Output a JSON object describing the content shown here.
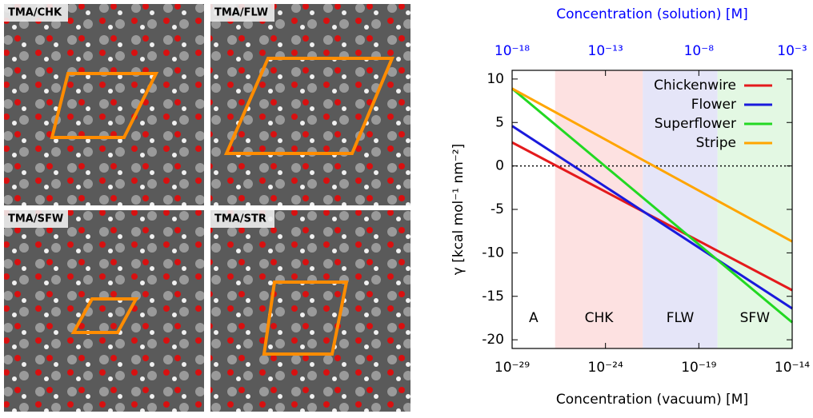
{
  "panels": [
    {
      "label": "TMA/CHK"
    },
    {
      "label": "TMA/FLW"
    },
    {
      "label": "TMA/SFW"
    },
    {
      "label": "TMA/STR"
    }
  ],
  "chart_data": {
    "type": "line",
    "xlabel": "Concentration (vacuum) [M]",
    "ylabel": "γ [kcal mol⁻¹ nm⁻²]",
    "x2label": "Concentration (solution) [M]",
    "x2_color": "#0000ff",
    "xscale": "log",
    "xlim": [
      1e-29,
      1e-14
    ],
    "xticks": [
      {
        "value": 1e-29,
        "label": "10⁻²⁹"
      },
      {
        "value": 1e-24,
        "label": "10⁻²⁴"
      },
      {
        "value": 1e-19,
        "label": "10⁻¹⁹"
      },
      {
        "value": 1e-14,
        "label": "10⁻¹⁴"
      }
    ],
    "x2lim": [
      1e-18,
      0.001
    ],
    "x2ticks": [
      {
        "value": 1e-18,
        "label": "10⁻¹⁸"
      },
      {
        "value": 1e-13,
        "label": "10⁻¹³"
      },
      {
        "value": 1e-08,
        "label": "10⁻⁸"
      },
      {
        "value": 0.001,
        "label": "10⁻³"
      }
    ],
    "ylim": [
      -21,
      11
    ],
    "yticks": [
      10,
      5,
      0,
      -5,
      -10,
      -15,
      -20
    ],
    "hline": 0,
    "legend": "upper right",
    "regions": [
      {
        "label": "A",
        "start": 1e-29,
        "end": 2e-27,
        "color": "#ffffff"
      },
      {
        "label": "CHK",
        "start": 2e-27,
        "end": 1e-22,
        "color": "#fde1e1"
      },
      {
        "label": "FLW",
        "start": 1e-22,
        "end": 1e-18,
        "color": "#e5e5f8"
      },
      {
        "label": "SFW",
        "start": 1e-18,
        "end": 1e-14,
        "color": "#e3f8e3"
      }
    ],
    "x": [
      1e-29,
      1e-14
    ],
    "series": [
      {
        "name": "Chickenwire",
        "color": "#e41a1c",
        "values": [
          2.7,
          -14.3
        ]
      },
      {
        "name": "Flower",
        "color": "#1a1adc",
        "values": [
          4.6,
          -16.4
        ]
      },
      {
        "name": "Superflower",
        "color": "#22d822",
        "values": [
          8.9,
          -18
        ]
      },
      {
        "name": "Stripe",
        "color": "#ffa500",
        "values": [
          8.9,
          -8.7
        ]
      }
    ]
  }
}
